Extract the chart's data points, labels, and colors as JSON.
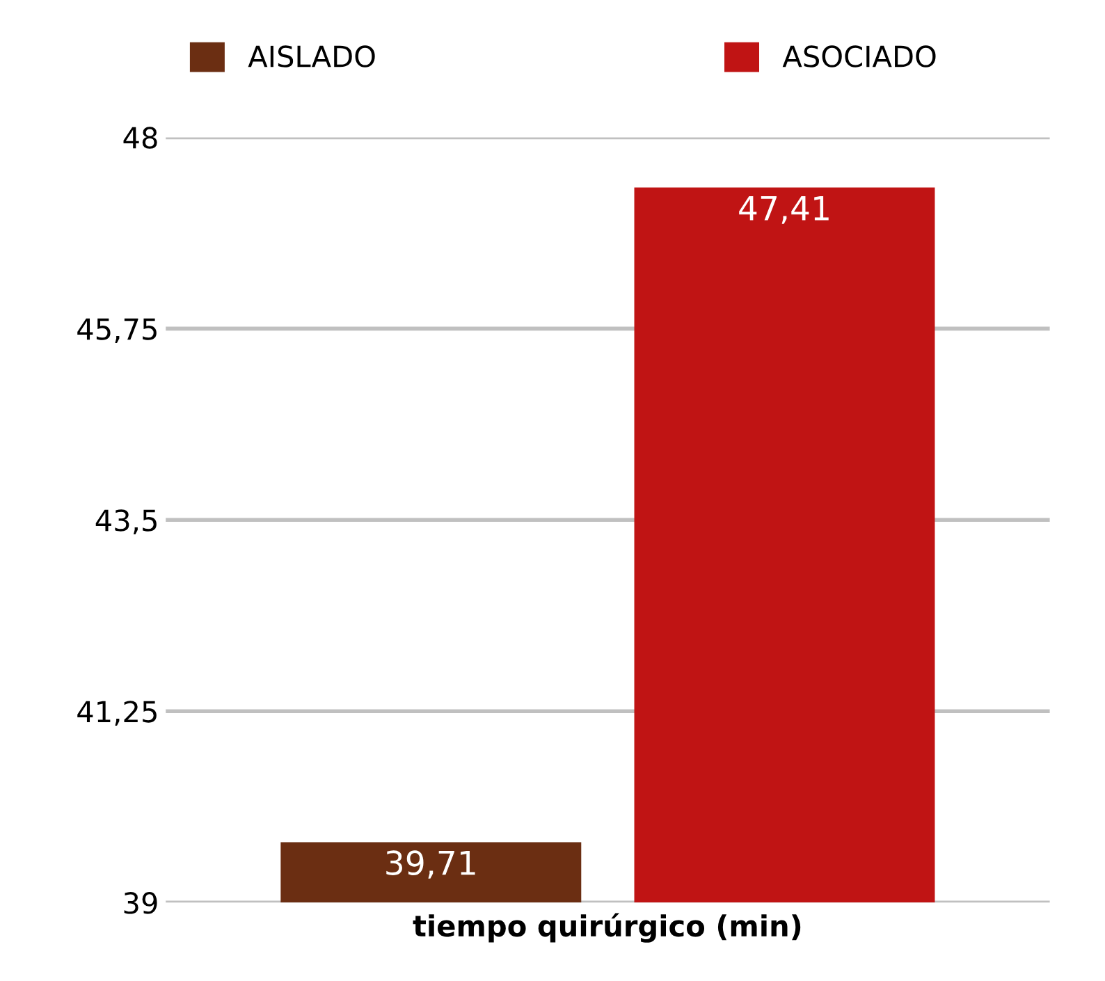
{
  "chart_data": {
    "type": "bar",
    "xlabel": "tiempo quirúrgico (min)",
    "categories": [
      null
    ],
    "series": [
      {
        "name": "AISLADO",
        "color": "#6b2e12",
        "values": [
          39.71
        ],
        "value_labels": [
          "39,71"
        ]
      },
      {
        "name": "ASOCIADO",
        "color": "#c01414",
        "values": [
          47.41
        ],
        "value_labels": [
          "47,41"
        ]
      }
    ],
    "ylim": [
      39,
      48
    ],
    "yticks": [
      {
        "value": 39,
        "label": "39"
      },
      {
        "value": 41.25,
        "label": "41,25"
      },
      {
        "value": 43.5,
        "label": "43,5"
      },
      {
        "value": 45.75,
        "label": "45,75"
      },
      {
        "value": 48,
        "label": "48"
      }
    ],
    "grid": "y",
    "legend": "top"
  }
}
